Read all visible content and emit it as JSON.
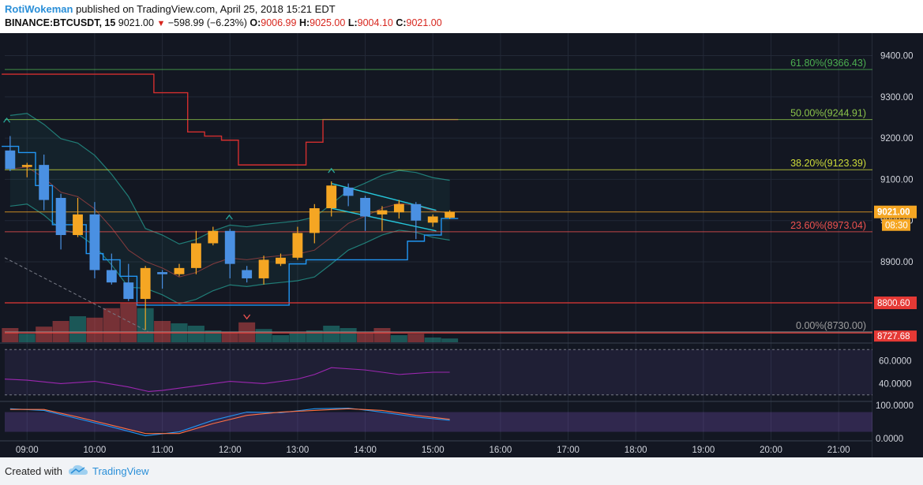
{
  "header": {
    "author": "RotiWokeman",
    "published_on": "published on TradingView.com, April 25, 2018 15:21 EDT",
    "symbol": "BINANCE:BTCUSDT, 15",
    "price": "9021.00",
    "change": "−598.99 (−6.23%)",
    "o_label": "O:",
    "o_value": "9006.99",
    "h_label": "H:",
    "h_value": "9025.00",
    "l_label": "L:",
    "l_value": "9004.10",
    "c_label": "C:",
    "c_value": "9021.00"
  },
  "colors": {
    "background": "#131722",
    "up": "#f5a623",
    "down": "#4a90e2",
    "volume_up": "#26a69a",
    "volume_down": "#ef5350",
    "fib_618": "#4caf50",
    "fib_50": "#8bc34a",
    "fib_382": "#cddc39",
    "fib_236": "#ef5350",
    "fib_0": "#9e9e9e"
  },
  "footer": {
    "created_with": "Created with",
    "brand": "TradingView"
  },
  "chart_data": {
    "type": "candlestick",
    "symbol": "BINANCE:BTCUSDT",
    "interval": "15",
    "price_axis": {
      "ylim": [
        8705,
        9445
      ],
      "ticks": [
        "9400.00",
        "9300.00",
        "9200.00",
        "9100.00",
        "9000.00",
        "8900.00"
      ],
      "tick_values": [
        9400,
        9300,
        9200,
        9100,
        9000,
        8900
      ],
      "last_price_label": "9021.00",
      "countdown_label": "08:30",
      "level_label_8800": "8800.60",
      "level_label_8727": "8727.68"
    },
    "time_axis": {
      "ticks": [
        "09:00",
        "10:00",
        "11:00",
        "12:00",
        "13:00",
        "14:00",
        "15:00",
        "16:00",
        "17:00",
        "18:00",
        "19:00",
        "20:00",
        "21:00"
      ],
      "start_hour": 8.67,
      "end_hour": 21.5
    },
    "fib_levels": [
      {
        "label": "61.80%(9366.43)",
        "value": 9366.43,
        "color": "#4caf50"
      },
      {
        "label": "50.00%(9244.91)",
        "value": 9244.91,
        "color": "#8bc34a"
      },
      {
        "label": "38.20%(9123.39)",
        "value": 9123.39,
        "color": "#cddc39"
      },
      {
        "label": "23.60%(8973.04)",
        "value": 8973.04,
        "color": "#ef5350"
      },
      {
        "label": "0.00%(8730.00)",
        "value": 8730.0,
        "color": "#9e9e9e"
      }
    ],
    "horizontal_levels": [
      8800.6,
      8727.68,
      9021.0
    ],
    "candles": [
      {
        "t": 8.75,
        "o": 9170,
        "h": 9205,
        "l": 9120,
        "c": 9125
      },
      {
        "t": 9.0,
        "o": 9130,
        "h": 9140,
        "l": 9105,
        "c": 9135
      },
      {
        "t": 9.25,
        "o": 9135,
        "h": 9160,
        "l": 9025,
        "c": 9050
      },
      {
        "t": 9.5,
        "o": 9055,
        "h": 9065,
        "l": 8930,
        "c": 8965
      },
      {
        "t": 9.75,
        "o": 8965,
        "h": 9055,
        "l": 8960,
        "c": 9015
      },
      {
        "t": 10.0,
        "o": 9015,
        "h": 9045,
        "l": 8860,
        "c": 8880
      },
      {
        "t": 10.25,
        "o": 8880,
        "h": 8920,
        "l": 8845,
        "c": 8850
      },
      {
        "t": 10.5,
        "o": 8850,
        "h": 8895,
        "l": 8805,
        "c": 8810
      },
      {
        "t": 10.75,
        "o": 8810,
        "h": 8890,
        "l": 8735,
        "c": 8885
      },
      {
        "t": 11.0,
        "o": 8875,
        "h": 8880,
        "l": 8835,
        "c": 8870
      },
      {
        "t": 11.25,
        "o": 8870,
        "h": 8895,
        "l": 8865,
        "c": 8885
      },
      {
        "t": 11.5,
        "o": 8885,
        "h": 8975,
        "l": 8870,
        "c": 8945
      },
      {
        "t": 11.75,
        "o": 8945,
        "h": 8985,
        "l": 8940,
        "c": 8975
      },
      {
        "t": 12.0,
        "o": 8975,
        "h": 8980,
        "l": 8860,
        "c": 8895
      },
      {
        "t": 12.25,
        "o": 8880,
        "h": 8890,
        "l": 8850,
        "c": 8860
      },
      {
        "t": 12.5,
        "o": 8860,
        "h": 8915,
        "l": 8845,
        "c": 8905
      },
      {
        "t": 12.75,
        "o": 8895,
        "h": 8920,
        "l": 8890,
        "c": 8910
      },
      {
        "t": 13.0,
        "o": 8910,
        "h": 8985,
        "l": 8905,
        "c": 8970
      },
      {
        "t": 13.25,
        "o": 8970,
        "h": 9040,
        "l": 8945,
        "c": 9030
      },
      {
        "t": 13.5,
        "o": 9030,
        "h": 9095,
        "l": 9010,
        "c": 9085
      },
      {
        "t": 13.75,
        "o": 9080,
        "h": 9090,
        "l": 9035,
        "c": 9060
      },
      {
        "t": 14.0,
        "o": 9055,
        "h": 9060,
        "l": 8975,
        "c": 9010
      },
      {
        "t": 14.25,
        "o": 9015,
        "h": 9035,
        "l": 8975,
        "c": 9025
      },
      {
        "t": 14.5,
        "o": 9020,
        "h": 9050,
        "l": 9005,
        "c": 9040
      },
      {
        "t": 14.75,
        "o": 9040,
        "h": 9045,
        "l": 8955,
        "c": 9000
      },
      {
        "t": 15.0,
        "o": 8995,
        "h": 9015,
        "l": 8985,
        "c": 9010
      },
      {
        "t": 15.25,
        "o": 9006.99,
        "h": 9025,
        "l": 9004.1,
        "c": 9021
      }
    ],
    "volume": [
      {
        "t": 8.75,
        "v": 0.3,
        "up": false
      },
      {
        "t": 9.0,
        "v": 0.18,
        "up": true
      },
      {
        "t": 9.25,
        "v": 0.33,
        "up": false
      },
      {
        "t": 9.5,
        "v": 0.45,
        "up": false
      },
      {
        "t": 9.75,
        "v": 0.55,
        "up": true
      },
      {
        "t": 10.0,
        "v": 0.52,
        "up": false
      },
      {
        "t": 10.25,
        "v": 0.72,
        "up": false
      },
      {
        "t": 10.5,
        "v": 0.82,
        "up": false
      },
      {
        "t": 10.75,
        "v": 0.72,
        "up": true
      },
      {
        "t": 11.0,
        "v": 0.45,
        "up": false
      },
      {
        "t": 11.25,
        "v": 0.4,
        "up": true
      },
      {
        "t": 11.5,
        "v": 0.35,
        "up": true
      },
      {
        "t": 11.75,
        "v": 0.25,
        "up": true
      },
      {
        "t": 12.0,
        "v": 0.22,
        "up": false
      },
      {
        "t": 12.25,
        "v": 0.42,
        "up": false
      },
      {
        "t": 12.5,
        "v": 0.28,
        "up": true
      },
      {
        "t": 12.75,
        "v": 0.15,
        "up": true
      },
      {
        "t": 13.0,
        "v": 0.2,
        "up": true
      },
      {
        "t": 13.25,
        "v": 0.25,
        "up": true
      },
      {
        "t": 13.5,
        "v": 0.35,
        "up": true
      },
      {
        "t": 13.75,
        "v": 0.3,
        "up": true
      },
      {
        "t": 14.0,
        "v": 0.2,
        "up": false
      },
      {
        "t": 14.25,
        "v": 0.3,
        "up": false
      },
      {
        "t": 14.5,
        "v": 0.15,
        "up": true
      },
      {
        "t": 14.75,
        "v": 0.18,
        "up": false
      },
      {
        "t": 15.0,
        "v": 0.1,
        "up": true
      },
      {
        "t": 15.25,
        "v": 0.08,
        "up": true
      }
    ],
    "rsi_panel": {
      "ticks": [
        "60.0000",
        "40.0000"
      ],
      "tick_values": [
        60,
        40
      ],
      "ylim": [
        25,
        75
      ],
      "t": [
        8.67,
        9.0,
        9.5,
        10.0,
        10.5,
        10.8,
        11.0,
        11.5,
        12.0,
        12.5,
        13.0,
        13.25,
        13.5,
        14.0,
        14.5,
        15.0,
        15.25
      ],
      "values": [
        44,
        43,
        40,
        42,
        37,
        33,
        34,
        38,
        42,
        40,
        44,
        48,
        54,
        52,
        48,
        50,
        50
      ]
    },
    "oscillator_panel": {
      "ticks": [
        "100.0000",
        "0.0000"
      ],
      "tick_values": [
        100,
        0
      ],
      "ylim": [
        -5,
        110
      ],
      "t": [
        8.75,
        9.25,
        9.75,
        10.25,
        10.75,
        11.25,
        11.75,
        12.25,
        12.75,
        13.25,
        13.75,
        14.25,
        14.75,
        15.25
      ],
      "k_values": [
        90,
        85,
        60,
        35,
        8,
        20,
        55,
        80,
        78,
        90,
        92,
        80,
        65,
        55
      ],
      "d_values": [
        88,
        88,
        65,
        40,
        15,
        15,
        45,
        70,
        80,
        85,
        90,
        85,
        70,
        58
      ]
    }
  }
}
